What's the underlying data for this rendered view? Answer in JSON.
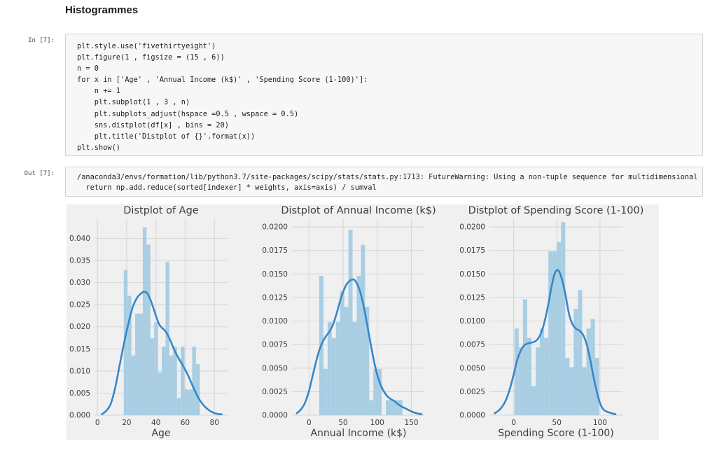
{
  "page": {
    "heading": "Histogrammes"
  },
  "input_cell": {
    "prompt": "In [7]:",
    "code_lines": [
      "plt.style.use('fivethirtyeight')",
      "plt.figure(1 , figsize = (15 , 6))",
      "n = 0",
      "for x in ['Age' , 'Annual Income (k$)' , 'Spending Score (1-100)']:",
      "    n += 1",
      "    plt.subplot(1 , 3 , n)",
      "    plt.subplots_adjust(hspace =0.5 , wspace = 0.5)",
      "    sns.distplot(df[x] , bins = 20)",
      "    plt.title('Distplot of {}'.format(x))",
      "plt.show()"
    ]
  },
  "output_cell": {
    "prompt": "Out [7]:",
    "lines": [
      "/anaconda3/envs/formation/lib/python3.7/site-packages/scipy/stats/stats.py:1713: FutureWarning: Using a non-tuple sequence for multidimensional",
      "  return np.add.reduce(sorted[indexer] * weights, axis=axis) / sumval"
    ]
  },
  "figure_style": {
    "background": "#f0f0f0",
    "grid": "#d9d9d9",
    "text": "#3d3d3d",
    "bar": "#a9cee3",
    "line": "#3787c8"
  },
  "chart_data": [
    {
      "type": "histogram+kde",
      "title": "Distplot of Age",
      "xlabel": "Age",
      "ylabel": "",
      "xlim": [
        -2,
        89
      ],
      "ylim": [
        0,
        0.0445
      ],
      "xticks": [
        0,
        20,
        40,
        60,
        80
      ],
      "yticks": [
        0,
        0.005,
        0.01,
        0.015,
        0.02,
        0.025,
        0.03,
        0.035,
        0.04
      ],
      "ytick_decimals": 3,
      "grid": true,
      "bins": {
        "start": 18,
        "width": 2.6,
        "values": [
          0.0328,
          0.027,
          0.0135,
          0.023,
          0.023,
          0.0425,
          0.0386,
          0.0174,
          0.021,
          0.0097,
          0.0155,
          0.0347,
          0.0135,
          0.0155,
          0.0039,
          0.0155,
          0.0058,
          0.0058,
          0.0155,
          0.0116
        ]
      },
      "kde": [
        [
          3,
          0.0002
        ],
        [
          6,
          0.001
        ],
        [
          9,
          0.0025
        ],
        [
          12,
          0.006
        ],
        [
          15,
          0.011
        ],
        [
          18,
          0.016
        ],
        [
          21,
          0.0205
        ],
        [
          24,
          0.0243
        ],
        [
          27,
          0.0265
        ],
        [
          30,
          0.0276
        ],
        [
          32,
          0.0279
        ],
        [
          34,
          0.0276
        ],
        [
          36,
          0.0263
        ],
        [
          38,
          0.0245
        ],
        [
          40,
          0.0225
        ],
        [
          42,
          0.0207
        ],
        [
          44,
          0.0198
        ],
        [
          46,
          0.0192
        ],
        [
          48,
          0.0182
        ],
        [
          50,
          0.0168
        ],
        [
          52,
          0.0152
        ],
        [
          54,
          0.0138
        ],
        [
          56,
          0.0126
        ],
        [
          58,
          0.0115
        ],
        [
          60,
          0.0103
        ],
        [
          62,
          0.009
        ],
        [
          64,
          0.0075
        ],
        [
          66,
          0.006
        ],
        [
          68,
          0.0046
        ],
        [
          70,
          0.0034
        ],
        [
          73,
          0.0021
        ],
        [
          76,
          0.0012
        ],
        [
          79,
          0.0006
        ],
        [
          82,
          0.0003
        ],
        [
          85,
          0.0002
        ]
      ]
    },
    {
      "type": "histogram+kde",
      "title": "Distplot of Annual Income (k$)",
      "xlabel": "Annual Income (k$)",
      "ylabel": "",
      "xlim": [
        -25,
        170
      ],
      "ylim": [
        0,
        0.0209
      ],
      "xticks": [
        0,
        50,
        100,
        150
      ],
      "yticks": [
        0,
        0.0025,
        0.005,
        0.0075,
        0.01,
        0.0125,
        0.015,
        0.0175,
        0.02
      ],
      "ytick_decimals": 4,
      "grid": true,
      "bins": {
        "start": 15,
        "width": 6.1,
        "values": [
          0.0148,
          0.0049,
          0.0099,
          0.0082,
          0.0099,
          0.0132,
          0.0115,
          0.0197,
          0.0099,
          0.0148,
          0.0181,
          0.0115,
          0.0016,
          0.0049,
          0.0049,
          0,
          0.0016,
          0.0016,
          0.0016,
          0.0016
        ]
      },
      "kde": [
        [
          -18,
          0.0002
        ],
        [
          -12,
          0.0006
        ],
        [
          -6,
          0.0013
        ],
        [
          0,
          0.0026
        ],
        [
          5,
          0.0041
        ],
        [
          10,
          0.0056
        ],
        [
          15,
          0.0069
        ],
        [
          20,
          0.0078
        ],
        [
          25,
          0.0084
        ],
        [
          30,
          0.0089
        ],
        [
          35,
          0.0096
        ],
        [
          40,
          0.0107
        ],
        [
          45,
          0.012
        ],
        [
          50,
          0.0131
        ],
        [
          55,
          0.0139
        ],
        [
          60,
          0.0143
        ],
        [
          63,
          0.0144
        ],
        [
          66,
          0.0144
        ],
        [
          70,
          0.014
        ],
        [
          75,
          0.0131
        ],
        [
          80,
          0.0116
        ],
        [
          85,
          0.0097
        ],
        [
          90,
          0.0077
        ],
        [
          95,
          0.0058
        ],
        [
          100,
          0.0043
        ],
        [
          105,
          0.0032
        ],
        [
          110,
          0.0025
        ],
        [
          115,
          0.002
        ],
        [
          120,
          0.0017
        ],
        [
          125,
          0.0015
        ],
        [
          130,
          0.0012
        ],
        [
          136,
          0.0009
        ],
        [
          142,
          0.0007
        ],
        [
          150,
          0.0004
        ],
        [
          158,
          0.0002
        ],
        [
          165,
          0.0001
        ]
      ]
    },
    {
      "type": "histogram+kde",
      "title": "Distplot of Spending Score (1-100)",
      "xlabel": "Spending Score (1-100)",
      "ylabel": "",
      "xlim": [
        -28,
        126
      ],
      "ylim": [
        0,
        0.0209
      ],
      "xticks": [
        0,
        50,
        100
      ],
      "yticks": [
        0,
        0.0025,
        0.005,
        0.0075,
        0.01,
        0.0125,
        0.015,
        0.0175,
        0.02
      ],
      "ytick_decimals": 4,
      "grid": true,
      "bins": {
        "start": 1,
        "width": 4.9,
        "values": [
          0.0092,
          0.0072,
          0.0123,
          0.0082,
          0.0031,
          0.0072,
          0.0092,
          0.0082,
          0.0174,
          0.0174,
          0.0184,
          0.0205,
          0.0061,
          0.0051,
          0.0113,
          0.0133,
          0.0051,
          0.0092,
          0.0102,
          0.0061
        ]
      },
      "kde": [
        [
          -22,
          0.0002
        ],
        [
          -16,
          0.0006
        ],
        [
          -10,
          0.0014
        ],
        [
          -5,
          0.0026
        ],
        [
          0,
          0.0043
        ],
        [
          4,
          0.0058
        ],
        [
          8,
          0.0068
        ],
        [
          12,
          0.0074
        ],
        [
          16,
          0.0076
        ],
        [
          20,
          0.0077
        ],
        [
          24,
          0.0078
        ],
        [
          28,
          0.0081
        ],
        [
          32,
          0.0088
        ],
        [
          36,
          0.01
        ],
        [
          40,
          0.0117
        ],
        [
          44,
          0.0137
        ],
        [
          47,
          0.0149
        ],
        [
          50,
          0.0154
        ],
        [
          53,
          0.0152
        ],
        [
          56,
          0.0144
        ],
        [
          60,
          0.0128
        ],
        [
          64,
          0.0108
        ],
        [
          68,
          0.0097
        ],
        [
          72,
          0.0092
        ],
        [
          76,
          0.009
        ],
        [
          80,
          0.0086
        ],
        [
          84,
          0.0077
        ],
        [
          88,
          0.0062
        ],
        [
          92,
          0.0043
        ],
        [
          96,
          0.0026
        ],
        [
          100,
          0.0013
        ],
        [
          104,
          0.0006
        ],
        [
          110,
          0.0003
        ],
        [
          118,
          0.0001
        ]
      ]
    }
  ]
}
